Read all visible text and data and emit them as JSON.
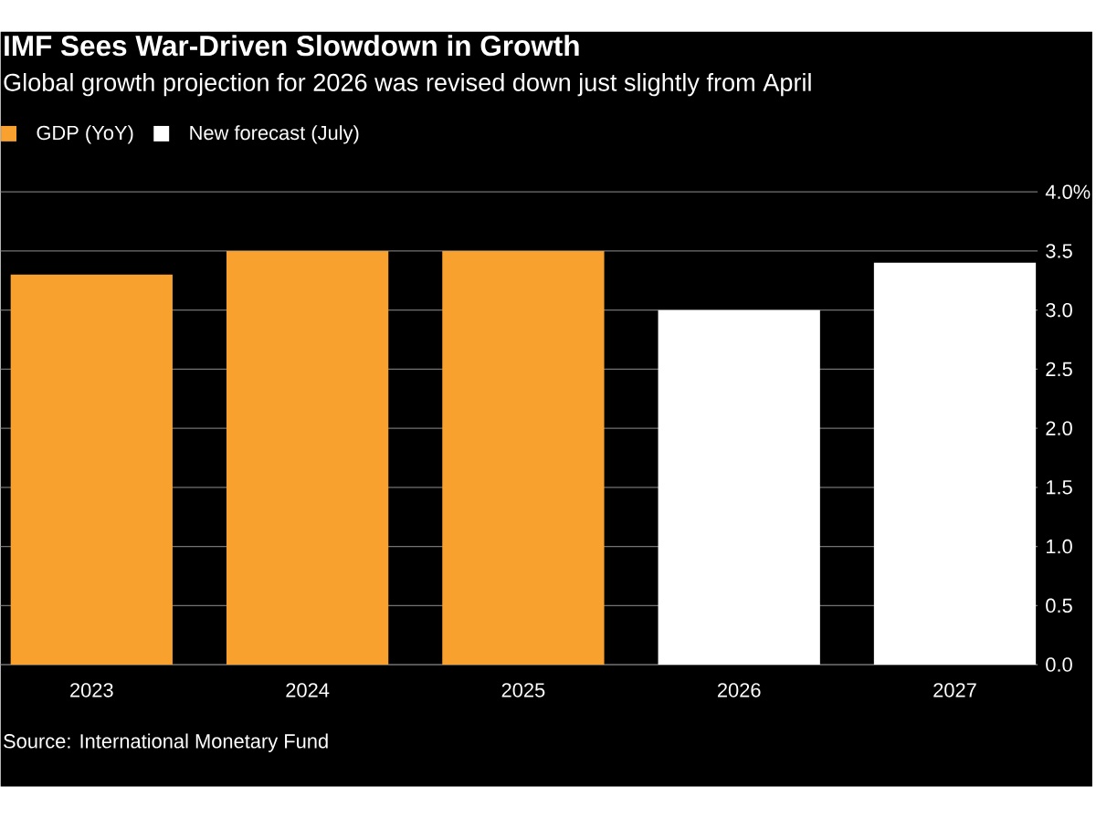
{
  "chart_data": {
    "type": "bar",
    "title": "IMF Sees War-Driven Slowdown in Growth",
    "subtitle": "Global growth projection for 2026 was revised down just slightly from April",
    "categories": [
      "2023",
      "2024",
      "2025",
      "2026",
      "2027"
    ],
    "series": [
      {
        "name": "GDP (YoY)",
        "color": "#f9a12e",
        "values": [
          3.3,
          3.5,
          3.5,
          null,
          null
        ]
      },
      {
        "name": "New forecast (July)",
        "color": "#ffffff",
        "values": [
          null,
          null,
          null,
          3.0,
          3.4
        ]
      }
    ],
    "ylim": [
      0,
      4
    ],
    "yticks": [
      {
        "value": 0,
        "label": "0.0"
      },
      {
        "value": 0.5,
        "label": "0.5"
      },
      {
        "value": 1,
        "label": "1.0"
      },
      {
        "value": 1.5,
        "label": "1.5"
      },
      {
        "value": 2,
        "label": "2.0"
      },
      {
        "value": 2.5,
        "label": "2.5"
      },
      {
        "value": 3,
        "label": "3.0"
      },
      {
        "value": 3.5,
        "label": "3.5"
      },
      {
        "value": 4,
        "label": "4.0%"
      }
    ],
    "grid": "y",
    "legend": "top left",
    "annotations": [
      "Source: International Monetary Fund"
    ]
  }
}
